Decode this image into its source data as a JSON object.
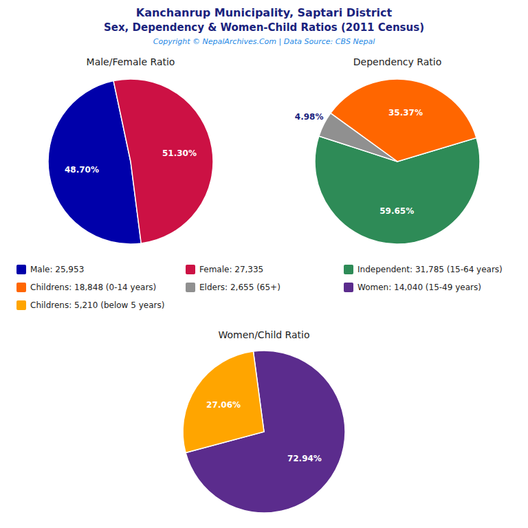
{
  "title": "Kanchanrup Municipality, Saptari District",
  "subtitle": "Sex, Dependency & Women-Child Ratios (2011 Census)",
  "annotations": [
    "Copyright © NepalArchives.Com | Data Source: CBS Nepal"
  ],
  "chart_data": [
    {
      "type": "pie",
      "title": "Male/Female Ratio",
      "categories": [
        "Male: 25,953",
        "Female: 27,335"
      ],
      "values": [
        48.7,
        51.3
      ],
      "value_labels": [
        "48.70%",
        "51.30%"
      ],
      "colors": [
        "#0000AA",
        "#CC1144"
      ],
      "data_labels": true,
      "legend": "center"
    },
    {
      "type": "pie",
      "title": "Dependency Ratio",
      "categories": [
        "Independent: 31,785 (15-64 years)",
        "Childrens: 18,848 (0-14 years)",
        "Elders: 2,655 (65+)"
      ],
      "values": [
        59.65,
        35.37,
        4.98
      ],
      "value_labels": [
        "59.65%",
        "35.37%",
        "4.98%"
      ],
      "colors": [
        "#2E8B57",
        "#FF6600",
        "#909090"
      ],
      "data_labels": true,
      "legend": "center"
    },
    {
      "type": "pie",
      "title": "Women/Child Ratio",
      "categories": [
        "Women: 14,040 (15-49 years)",
        "Childrens: 5,210 (below 5 years)"
      ],
      "values": [
        72.94,
        27.06
      ],
      "value_labels": [
        "72.94%",
        "27.06%"
      ],
      "colors": [
        "#5B2C8D",
        "#FFA500"
      ],
      "data_labels": true,
      "legend": "center"
    }
  ]
}
